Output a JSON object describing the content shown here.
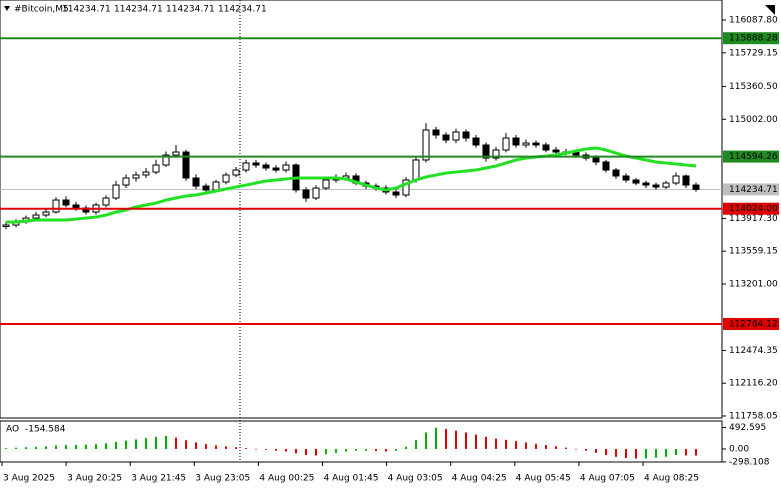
{
  "header": {
    "symbol": "#Bitcoin,M5",
    "ohlc": [
      114234.71,
      114234.71,
      114234.71,
      114234.71
    ]
  },
  "chart_data": [
    {
      "type": "candlestick",
      "open": [
        113830,
        113846,
        113879,
        113922,
        113955,
        113988,
        114119,
        114065,
        114032,
        113988,
        114065,
        114141,
        114283,
        114360,
        114393,
        114425,
        114502,
        114611,
        114644,
        114360,
        114272,
        114229,
        114316,
        114393,
        114447,
        114524,
        114502,
        114469,
        114447,
        114502,
        114229,
        114141,
        114250,
        114338,
        114360,
        114382,
        114305,
        114272,
        114250,
        114207,
        114174,
        114338,
        114557,
        114885,
        114830,
        114775,
        114863,
        114797,
        114721,
        114578,
        114666,
        114797,
        114721,
        114742,
        114721,
        114666,
        114644,
        114644,
        114611,
        114578,
        114535,
        114447,
        114382,
        114338,
        114305,
        114283,
        114261,
        114305,
        114382,
        114283
      ],
      "high": [
        113880,
        113910,
        113950,
        113990,
        114020,
        114150,
        114160,
        114100,
        114060,
        114090,
        114170,
        114330,
        114400,
        114430,
        114470,
        114560,
        114650,
        114720,
        114670,
        114400,
        114300,
        114340,
        114420,
        114480,
        114560,
        114560,
        114530,
        114500,
        114540,
        114520,
        114260,
        114280,
        114370,
        114400,
        114420,
        114410,
        114330,
        114300,
        114280,
        114240,
        114370,
        114600,
        114960,
        114920,
        114860,
        114900,
        114890,
        114830,
        114750,
        114700,
        114850,
        114830,
        114780,
        114770,
        114750,
        114700,
        114680,
        114670,
        114640,
        114610,
        114560,
        114470,
        114410,
        114360,
        114330,
        114310,
        114330,
        114420,
        114400,
        114310
      ],
      "low": [
        113800,
        113820,
        113860,
        113900,
        113930,
        113970,
        114040,
        114000,
        113960,
        113960,
        114040,
        114120,
        114250,
        114320,
        114360,
        114400,
        114480,
        114580,
        114330,
        114240,
        114200,
        114210,
        114290,
        114370,
        114420,
        114470,
        114440,
        114420,
        114420,
        114200,
        114100,
        114120,
        114230,
        114310,
        114330,
        114280,
        114240,
        114220,
        114180,
        114140,
        114150,
        114310,
        114530,
        114790,
        114740,
        114740,
        114760,
        114690,
        114540,
        114550,
        114640,
        114690,
        114690,
        114690,
        114640,
        114610,
        114610,
        114580,
        114550,
        114500,
        114420,
        114350,
        114310,
        114280,
        114250,
        114230,
        114240,
        114280,
        114250,
        114210
      ],
      "close": [
        113846,
        113879,
        113922,
        113955,
        113988,
        114119,
        114065,
        114032,
        113988,
        114065,
        114141,
        114283,
        114360,
        114393,
        114425,
        114502,
        114611,
        114644,
        114360,
        114272,
        114229,
        114316,
        114393,
        114447,
        114524,
        114502,
        114469,
        114447,
        114502,
        114229,
        114141,
        114250,
        114338,
        114360,
        114382,
        114305,
        114272,
        114250,
        114207,
        114174,
        114338,
        114557,
        114885,
        114830,
        114775,
        114863,
        114797,
        114721,
        114578,
        114666,
        114797,
        114721,
        114742,
        114721,
        114666,
        114644,
        114644,
        114611,
        114578,
        114535,
        114447,
        114382,
        114338,
        114305,
        114283,
        114261,
        114305,
        114382,
        114283,
        114235
      ],
      "up_color": "#ffffff",
      "down_color": "#000000",
      "ma": {
        "color": "#22e022",
        "values": [
          113879,
          113879,
          113889,
          113901,
          113901,
          113901,
          113901,
          113911,
          113922,
          113933,
          113955,
          113988,
          114010,
          114043,
          114065,
          114086,
          114119,
          114141,
          114163,
          114174,
          114196,
          114218,
          114240,
          114262,
          114283,
          114305,
          114327,
          114338,
          114349,
          114360,
          114360,
          114360,
          114360,
          114360,
          114349,
          114316,
          114283,
          114250,
          114229,
          114250,
          114294,
          114338,
          114371,
          114393,
          114414,
          114425,
          114436,
          114447,
          114469,
          114491,
          114524,
          114557,
          114578,
          114589,
          114600,
          114611,
          114633,
          114655,
          114677,
          114688,
          114666,
          114633,
          114600,
          114578,
          114557,
          114535,
          114524,
          114513,
          114502,
          114491
        ]
      },
      "ylim": [
        111736,
        116306
      ],
      "yticks": [
        {
          "value": 116087.8,
          "label": "116087.80"
        },
        115729.15,
        {
          "value": 115360.5,
          "label": "115360.50"
        },
        {
          "value": 115002,
          "label": "115002.00"
        },
        {
          "value": 113917.3,
          "label": "113917.30"
        },
        113559.15,
        {
          "value": 113201,
          "label": "113201.00"
        },
        112474.35,
        {
          "value": 112116.2,
          "label": "112116.20"
        },
        111758.05
      ],
      "levels": [
        {
          "value": 115888.28,
          "color": "#1f8a1f"
        },
        {
          "value": 114594.26,
          "color": "#1f8a1f"
        },
        {
          "value": 114024,
          "label": "114024.00",
          "color": "#e00000"
        },
        {
          "value": 112764.12,
          "color": "#e00000"
        }
      ],
      "last_price": 114234.71,
      "x_labels": [
        "3 Aug 2025",
        "3 Aug 20:25",
        "3 Aug 21:45",
        "3 Aug 23:05",
        "4 Aug 00:25",
        "4 Aug 01:45",
        "4 Aug 03:05",
        "4 Aug 04:25",
        "4 Aug 05:45",
        "4 Aug 07:05",
        "4 Aug 08:25"
      ]
    },
    {
      "type": "histogram",
      "name": "AO",
      "values": [
        20,
        30,
        40,
        50,
        60,
        80,
        90,
        90,
        100,
        110,
        130,
        160,
        190,
        220,
        250,
        280,
        300,
        260,
        200,
        150,
        110,
        80,
        60,
        40,
        20,
        0,
        -20,
        -40,
        -60,
        -100,
        -140,
        -150,
        -120,
        -90,
        -60,
        -40,
        -40,
        -50,
        -60,
        -40,
        50,
        200,
        380,
        490,
        460,
        420,
        380,
        330,
        280,
        240,
        210,
        180,
        150,
        120,
        90,
        60,
        30,
        0,
        -40,
        -90,
        -140,
        -180,
        -210,
        -220,
        -220,
        -200,
        -180,
        -140,
        -150,
        -154.584
      ],
      "up_color": "#00b000",
      "down_color": "#e00000",
      "ylim": [
        -300,
        620
      ],
      "yticks": [
        492.595,
        {
          "value": 0,
          "label": "0.00"
        },
        -298.108
      ]
    }
  ]
}
